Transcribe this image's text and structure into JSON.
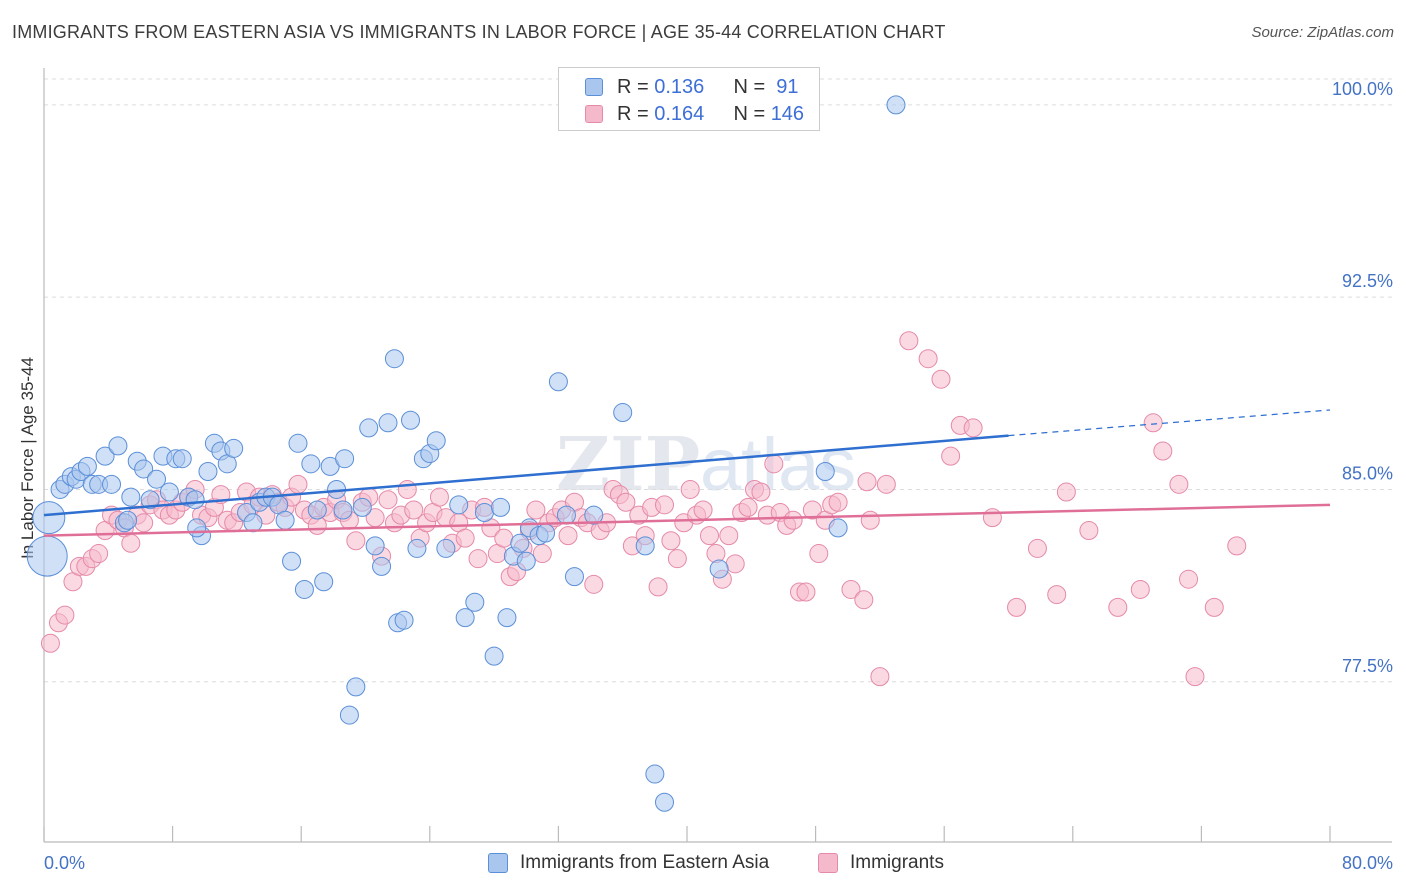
{
  "header": {
    "title": "IMMIGRANTS FROM EASTERN ASIA VS IMMIGRANTS IN LABOR FORCE | AGE 35-44 CORRELATION CHART",
    "source": "Source: ZipAtlas.com"
  },
  "watermark": {
    "part1": "ZIP",
    "part2": "atlas"
  },
  "colors": {
    "blue_fill": "#a9c6ee",
    "blue_stroke": "#5b8fd8",
    "blue_line": "#2f6fd0",
    "pink_fill": "#f5b9cc",
    "pink_stroke": "#e58aa8",
    "pink_line": "#e06f98",
    "tick_label": "#4472c4"
  },
  "legend_top": {
    "rows": [
      {
        "r_label": "R = ",
        "r_value": "0.136",
        "n_label": "N = ",
        "n_value": " 91"
      },
      {
        "r_label": "R = ",
        "r_value": "0.164",
        "n_label": "N = ",
        "n_value": "146"
      }
    ]
  },
  "chart_data": {
    "type": "scatter",
    "title": "IMMIGRANTS FROM EASTERN ASIA VS IMMIGRANTS IN LABOR FORCE | AGE 35-44 CORRELATION CHART",
    "ylabel": "In Labor Force | Age 35-44",
    "xlabel": "",
    "xlim": [
      0,
      80
    ],
    "ylim": [
      71.25,
      101.75
    ],
    "x_tick_labels": [
      "0.0%",
      "80.0%"
    ],
    "y_ticks": [
      77.5,
      85.0,
      92.5,
      100.0
    ],
    "y_tick_labels": [
      "77.5%",
      "85.0%",
      "92.5%",
      "100.0%"
    ],
    "grid": true,
    "legend_position": "bottom-center",
    "series": [
      {
        "name": "Immigrants from Eastern Asia",
        "R": 0.136,
        "N": 91,
        "trend": {
          "x0": 0,
          "y0": 84.0,
          "x1": 60,
          "y1": 87.1,
          "dash_to_x": 80,
          "dash_to_y": 88.1
        },
        "points": [
          [
            0.3,
            83.9
          ],
          [
            0.2,
            82.4
          ],
          [
            1.0,
            85.0
          ],
          [
            1.3,
            85.2
          ],
          [
            1.7,
            85.5
          ],
          [
            2.0,
            85.4
          ],
          [
            2.3,
            85.7
          ],
          [
            2.7,
            85.9
          ],
          [
            3.0,
            85.2
          ],
          [
            3.4,
            85.2
          ],
          [
            3.8,
            86.3
          ],
          [
            4.2,
            85.2
          ],
          [
            4.6,
            86.7
          ],
          [
            5.0,
            83.7
          ],
          [
            5.4,
            84.7
          ],
          [
            5.8,
            86.1
          ],
          [
            6.2,
            85.8
          ],
          [
            6.6,
            84.6
          ],
          [
            7.0,
            85.4
          ],
          [
            7.4,
            86.3
          ],
          [
            7.8,
            84.9
          ],
          [
            8.2,
            86.2
          ],
          [
            8.6,
            86.2
          ],
          [
            9.0,
            84.7
          ],
          [
            9.4,
            84.6
          ],
          [
            9.8,
            83.2
          ],
          [
            10.2,
            85.7
          ],
          [
            10.6,
            86.8
          ],
          [
            11.0,
            86.5
          ],
          [
            11.4,
            86.0
          ],
          [
            11.8,
            86.6
          ],
          [
            12.6,
            84.1
          ],
          [
            13.0,
            83.7
          ],
          [
            13.4,
            84.5
          ],
          [
            13.8,
            84.7
          ],
          [
            14.2,
            84.7
          ],
          [
            14.6,
            84.4
          ],
          [
            15.0,
            83.8
          ],
          [
            15.4,
            82.2
          ],
          [
            15.8,
            86.8
          ],
          [
            16.2,
            81.1
          ],
          [
            16.6,
            86.0
          ],
          [
            17.0,
            84.2
          ],
          [
            17.4,
            81.4
          ],
          [
            17.8,
            85.9
          ],
          [
            18.2,
            85.0
          ],
          [
            18.6,
            84.2
          ],
          [
            18.7,
            86.2
          ],
          [
            19.0,
            76.2
          ],
          [
            19.4,
            77.3
          ],
          [
            19.8,
            84.3
          ],
          [
            20.2,
            87.4
          ],
          [
            20.6,
            82.8
          ],
          [
            21.0,
            82.0
          ],
          [
            21.4,
            87.6
          ],
          [
            21.8,
            90.1
          ],
          [
            22.0,
            79.8
          ],
          [
            22.4,
            79.9
          ],
          [
            22.8,
            87.7
          ],
          [
            23.2,
            82.7
          ],
          [
            23.6,
            86.2
          ],
          [
            24.0,
            86.4
          ],
          [
            24.4,
            86.9
          ],
          [
            25.0,
            82.7
          ],
          [
            25.8,
            84.4
          ],
          [
            26.2,
            80.0
          ],
          [
            26.8,
            80.6
          ],
          [
            27.4,
            84.1
          ],
          [
            28.0,
            78.5
          ],
          [
            28.4,
            84.3
          ],
          [
            28.8,
            80.0
          ],
          [
            29.2,
            82.4
          ],
          [
            29.6,
            82.9
          ],
          [
            30.2,
            83.5
          ],
          [
            30.8,
            83.2
          ],
          [
            31.2,
            83.3
          ],
          [
            32.0,
            89.2
          ],
          [
            32.5,
            84.0
          ],
          [
            33.0,
            81.6
          ],
          [
            34.2,
            84.0
          ],
          [
            36.0,
            88.0
          ],
          [
            37.4,
            82.8
          ],
          [
            38.0,
            73.9
          ],
          [
            38.6,
            72.8
          ],
          [
            48.6,
            85.7
          ],
          [
            49.4,
            83.5
          ],
          [
            53.0,
            100.0
          ],
          [
            42.0,
            81.9
          ],
          [
            9.5,
            83.5
          ],
          [
            5.2,
            83.8
          ],
          [
            30.0,
            82.2
          ]
        ]
      },
      {
        "name": "Immigrants",
        "R": 0.164,
        "N": 146,
        "trend": {
          "x0": 0,
          "y0": 83.2,
          "x1": 80,
          "y1": 84.4
        },
        "points": [
          [
            0.4,
            79.0
          ],
          [
            0.9,
            79.8
          ],
          [
            1.3,
            80.1
          ],
          [
            1.8,
            81.4
          ],
          [
            2.2,
            82.0
          ],
          [
            2.6,
            82.0
          ],
          [
            3.0,
            82.3
          ],
          [
            3.4,
            82.5
          ],
          [
            3.8,
            83.4
          ],
          [
            4.2,
            84.0
          ],
          [
            4.6,
            83.8
          ],
          [
            5.0,
            83.5
          ],
          [
            5.4,
            82.9
          ],
          [
            5.8,
            84.0
          ],
          [
            6.2,
            83.7
          ],
          [
            6.6,
            84.4
          ],
          [
            7.0,
            84.6
          ],
          [
            7.4,
            84.2
          ],
          [
            7.8,
            84.0
          ],
          [
            8.2,
            84.2
          ],
          [
            8.6,
            84.5
          ],
          [
            9.0,
            84.7
          ],
          [
            9.4,
            85.0
          ],
          [
            9.8,
            84.0
          ],
          [
            10.2,
            83.9
          ],
          [
            10.6,
            84.3
          ],
          [
            11.0,
            84.8
          ],
          [
            11.4,
            83.8
          ],
          [
            11.8,
            83.7
          ],
          [
            12.2,
            84.1
          ],
          [
            12.6,
            84.9
          ],
          [
            13.0,
            84.4
          ],
          [
            13.4,
            84.7
          ],
          [
            13.8,
            84.0
          ],
          [
            14.2,
            84.8
          ],
          [
            14.6,
            84.5
          ],
          [
            15.0,
            84.3
          ],
          [
            15.4,
            84.7
          ],
          [
            15.8,
            85.2
          ],
          [
            16.2,
            84.2
          ],
          [
            16.6,
            84.0
          ],
          [
            17.0,
            83.6
          ],
          [
            17.4,
            84.3
          ],
          [
            17.8,
            84.1
          ],
          [
            18.2,
            84.6
          ],
          [
            18.6,
            84.1
          ],
          [
            19.0,
            83.8
          ],
          [
            19.4,
            83.0
          ],
          [
            19.8,
            84.5
          ],
          [
            20.2,
            84.7
          ],
          [
            20.6,
            83.9
          ],
          [
            21.0,
            82.4
          ],
          [
            21.4,
            84.6
          ],
          [
            21.8,
            83.7
          ],
          [
            22.2,
            84.0
          ],
          [
            22.6,
            85.0
          ],
          [
            23.0,
            84.2
          ],
          [
            23.4,
            83.1
          ],
          [
            23.8,
            83.7
          ],
          [
            24.2,
            84.1
          ],
          [
            24.6,
            84.7
          ],
          [
            25.0,
            83.9
          ],
          [
            25.4,
            82.9
          ],
          [
            25.8,
            83.7
          ],
          [
            26.2,
            83.1
          ],
          [
            26.6,
            84.2
          ],
          [
            27.0,
            82.3
          ],
          [
            27.4,
            84.3
          ],
          [
            27.8,
            83.5
          ],
          [
            28.2,
            82.5
          ],
          [
            28.6,
            83.1
          ],
          [
            29.0,
            81.6
          ],
          [
            29.4,
            81.8
          ],
          [
            29.8,
            82.7
          ],
          [
            30.2,
            83.4
          ],
          [
            30.6,
            84.2
          ],
          [
            31.0,
            82.5
          ],
          [
            31.4,
            83.7
          ],
          [
            31.8,
            83.9
          ],
          [
            32.2,
            84.2
          ],
          [
            32.6,
            83.2
          ],
          [
            33.0,
            84.5
          ],
          [
            33.4,
            83.9
          ],
          [
            33.8,
            83.7
          ],
          [
            34.2,
            81.3
          ],
          [
            34.6,
            83.4
          ],
          [
            35.0,
            83.7
          ],
          [
            35.4,
            85.0
          ],
          [
            35.8,
            84.8
          ],
          [
            36.2,
            84.5
          ],
          [
            36.6,
            82.8
          ],
          [
            37.0,
            84.0
          ],
          [
            37.4,
            83.2
          ],
          [
            37.8,
            84.3
          ],
          [
            38.2,
            81.2
          ],
          [
            38.6,
            84.4
          ],
          [
            39.0,
            83.0
          ],
          [
            39.4,
            82.3
          ],
          [
            39.8,
            83.7
          ],
          [
            40.2,
            85.0
          ],
          [
            40.6,
            84.0
          ],
          [
            41.0,
            84.2
          ],
          [
            41.4,
            83.2
          ],
          [
            41.8,
            82.5
          ],
          [
            42.2,
            81.5
          ],
          [
            42.6,
            83.2
          ],
          [
            43.0,
            82.1
          ],
          [
            43.4,
            84.1
          ],
          [
            43.8,
            84.3
          ],
          [
            44.2,
            85.0
          ],
          [
            44.6,
            84.9
          ],
          [
            45.0,
            84.0
          ],
          [
            45.4,
            86.0
          ],
          [
            45.8,
            84.1
          ],
          [
            46.2,
            83.6
          ],
          [
            46.6,
            83.8
          ],
          [
            47.0,
            81.0
          ],
          [
            47.4,
            81.0
          ],
          [
            47.8,
            84.2
          ],
          [
            48.2,
            82.5
          ],
          [
            48.6,
            83.8
          ],
          [
            49.0,
            84.4
          ],
          [
            49.4,
            84.5
          ],
          [
            50.2,
            81.1
          ],
          [
            51.0,
            80.7
          ],
          [
            51.2,
            85.3
          ],
          [
            51.4,
            83.8
          ],
          [
            52.0,
            77.7
          ],
          [
            52.4,
            85.2
          ],
          [
            53.8,
            90.8
          ],
          [
            55.0,
            90.1
          ],
          [
            55.8,
            89.3
          ],
          [
            56.4,
            86.3
          ],
          [
            57.0,
            87.5
          ],
          [
            57.8,
            87.4
          ],
          [
            59.0,
            83.9
          ],
          [
            60.5,
            80.4
          ],
          [
            61.8,
            82.7
          ],
          [
            63.0,
            80.9
          ],
          [
            63.6,
            84.9
          ],
          [
            65.0,
            83.4
          ],
          [
            66.8,
            80.4
          ],
          [
            68.2,
            81.1
          ],
          [
            69.0,
            87.6
          ],
          [
            69.6,
            86.5
          ],
          [
            70.6,
            85.2
          ],
          [
            71.2,
            81.5
          ],
          [
            71.6,
            77.7
          ],
          [
            72.8,
            80.4
          ],
          [
            74.2,
            82.8
          ]
        ]
      }
    ]
  },
  "legend_bottom": {
    "items": [
      {
        "label": "Immigrants from Eastern Asia"
      },
      {
        "label": "Immigrants"
      }
    ]
  }
}
